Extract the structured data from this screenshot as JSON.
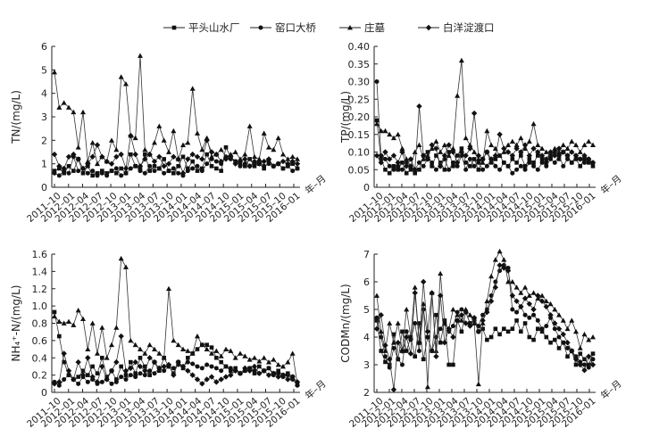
{
  "legend": [
    {
      "name": "平头山水厂",
      "marker": "square"
    },
    {
      "name": "窑口大桥",
      "marker": "circle"
    },
    {
      "name": "庄墓",
      "marker": "triangle"
    },
    {
      "name": "白洋淀渡口",
      "marker": "diamond"
    }
  ],
  "chart_data": [
    {
      "type": "line",
      "ylabel": "TN/(mg/L)",
      "xunit": "年–月",
      "ylim": [
        0,
        6
      ],
      "yticks": [
        "0",
        "1",
        "2",
        "3",
        "4",
        "5",
        "6"
      ],
      "xticks": [
        "2011–10",
        "2012–01",
        "2012–04",
        "2012–07",
        "2012–10",
        "2013–01",
        "2013–04",
        "2013–07",
        "2013–10",
        "2014–01",
        "2014–04",
        "2014–07",
        "2014–10",
        "2015–01",
        "2015–04",
        "2015–07",
        "2015–10",
        "2016–01"
      ],
      "series": [
        {
          "name": "平头山水厂",
          "values": [
            0.7,
            0.8,
            0.6,
            0.9,
            0.7,
            1.2,
            0.6,
            0.9,
            0.5,
            0.6,
            0.7,
            0.6,
            0.7,
            0.6,
            0.8,
            0.6,
            1.4,
            0.9,
            0.8,
            1.4,
            0.7,
            0.9,
            0.8,
            1.2,
            0.7,
            0.6,
            0.9,
            1.3,
            0.8,
            1.1,
            0.7,
            0.8,
            1.4,
            0.9,
            0.8,
            0.7,
            1.7,
            1.3,
            1.1,
            1.0,
            0.9,
            1.2,
            0.9,
            1.0,
            0.8,
            1.1,
            0.9,
            1.0,
            0.8,
            0.9,
            1.0,
            0.8
          ]
        },
        {
          "name": "窑口大桥",
          "values": [
            0.6,
            0.5,
            0.7,
            0.6,
            1.3,
            0.7,
            0.8,
            0.6,
            0.7,
            0.5,
            0.6,
            0.5,
            0.7,
            0.8,
            0.5,
            0.6,
            0.8,
            0.9,
            0.7,
            0.6,
            0.9,
            0.7,
            0.8,
            0.6,
            0.7,
            0.8,
            0.6,
            0.5,
            0.7,
            0.8,
            0.9,
            0.7,
            1.0,
            1.2,
            1.1,
            1.0,
            1.3,
            1.2,
            1.1,
            0.9,
            1.0,
            0.9,
            1.0,
            1.1,
            0.9,
            1.0,
            0.9,
            1.0,
            0.8,
            0.9,
            0.7,
            0.8
          ]
        },
        {
          "name": "庄墓",
          "values": [
            4.9,
            3.4,
            3.6,
            3.4,
            3.2,
            1.7,
            3.2,
            1.1,
            1.9,
            1.0,
            1.3,
            1.1,
            2.0,
            1.6,
            4.7,
            4.4,
            2.2,
            2.1,
            5.6,
            1.6,
            1.4,
            1.9,
            2.6,
            2.0,
            1.5,
            2.4,
            1.2,
            1.8,
            1.9,
            4.2,
            2.3,
            1.6,
            2.1,
            1.3,
            1.4,
            1.6,
            1.3,
            1.4,
            1.5,
            1.2,
            1.4,
            2.6,
            1.3,
            1.2,
            2.3,
            1.7,
            1.6,
            2.1,
            1.4,
            1.2,
            1.3,
            1.2
          ]
        },
        {
          "name": "白洋淀渡口",
          "values": [
            1.4,
            0.9,
            0.8,
            1.3,
            1.4,
            1.2,
            0.8,
            1.0,
            1.3,
            1.8,
            1.3,
            1.1,
            1.0,
            1.3,
            1.4,
            0.8,
            2.2,
            1.4,
            0.9,
            1.2,
            1.4,
            1.1,
            1.3,
            0.9,
            1.0,
            1.3,
            1.2,
            0.6,
            1.2,
            1.4,
            1.3,
            1.2,
            2.0,
            1.5,
            1.4,
            1.1,
            1.2,
            1.3,
            1.0,
            1.1,
            1.2,
            0.9,
            1.1,
            1.0,
            1.1,
            1.2,
            0.9,
            1.0,
            1.1,
            1.0,
            1.1,
            1.0
          ]
        }
      ]
    },
    {
      "type": "line",
      "ylabel": "TP/(mg/L)",
      "xunit": "年–月",
      "ylim": [
        0,
        0.4
      ],
      "yticks": [
        "0",
        "0.05",
        "0.10",
        "0.15",
        "0.20",
        "0.25",
        "0.30",
        "0.35",
        "0.40"
      ],
      "xticks": [
        "2011–10",
        "2012–01",
        "2012–04",
        "2012–07",
        "2012–10",
        "2013–01",
        "2013–04",
        "2013–07",
        "2013–10",
        "2014–01",
        "2014–04",
        "2014–07",
        "2014–10",
        "2015–01",
        "2015–04",
        "2015–07",
        "2015–10",
        "2016–01"
      ],
      "series": [
        {
          "name": "平头山水厂",
          "values": [
            0.19,
            0.08,
            0.05,
            0.04,
            0.06,
            0.05,
            0.07,
            0.04,
            0.05,
            0.04,
            0.05,
            0.09,
            0.1,
            0.06,
            0.09,
            0.07,
            0.05,
            0.1,
            0.06,
            0.09,
            0.11,
            0.07,
            0.06,
            0.08,
            0.05,
            0.08,
            0.1,
            0.07,
            0.08,
            0.09,
            0.07,
            0.06,
            0.08,
            0.07,
            0.09,
            0.06,
            0.08,
            0.07,
            0.09,
            0.08,
            0.07,
            0.09,
            0.1,
            0.08,
            0.1,
            0.09,
            0.07,
            0.08,
            0.06,
            0.08,
            0.07,
            0.06
          ]
        },
        {
          "name": "窑口大桥",
          "values": [
            0.3,
            0.09,
            0.08,
            0.06,
            0.05,
            0.06,
            0.05,
            0.07,
            0.06,
            0.05,
            0.07,
            0.06,
            0.08,
            0.07,
            0.05,
            0.06,
            0.08,
            0.05,
            0.07,
            0.06,
            0.09,
            0.05,
            0.08,
            0.06,
            0.07,
            0.05,
            0.06,
            0.08,
            0.06,
            0.05,
            0.07,
            0.06,
            0.04,
            0.05,
            0.06,
            0.05,
            0.07,
            0.06,
            0.05,
            0.07,
            0.06,
            0.08,
            0.07,
            0.09,
            0.06,
            0.08,
            0.07,
            0.09,
            0.08,
            0.07,
            0.08,
            0.07
          ]
        },
        {
          "name": "庄墓",
          "values": [
            0.18,
            0.16,
            0.16,
            0.15,
            0.14,
            0.15,
            0.11,
            0.08,
            0.06,
            0.1,
            0.12,
            0.08,
            0.09,
            0.11,
            0.13,
            0.1,
            0.12,
            0.09,
            0.11,
            0.26,
            0.36,
            0.14,
            0.12,
            0.1,
            0.08,
            0.07,
            0.16,
            0.12,
            0.11,
            0.09,
            0.1,
            0.12,
            0.13,
            0.12,
            0.14,
            0.11,
            0.13,
            0.18,
            0.12,
            0.11,
            0.1,
            0.09,
            0.11,
            0.1,
            0.12,
            0.11,
            0.13,
            0.12,
            0.1,
            0.12,
            0.13,
            0.12
          ]
        },
        {
          "name": "白洋淀渡口",
          "values": [
            0.09,
            0.07,
            0.1,
            0.08,
            0.09,
            0.07,
            0.1,
            0.06,
            0.08,
            0.05,
            0.23,
            0.09,
            0.08,
            0.12,
            0.11,
            0.06,
            0.09,
            0.12,
            0.1,
            0.07,
            0.1,
            0.09,
            0.11,
            0.21,
            0.09,
            0.08,
            0.1,
            0.08,
            0.09,
            0.15,
            0.11,
            0.1,
            0.09,
            0.11,
            0.1,
            0.12,
            0.09,
            0.11,
            0.1,
            0.09,
            0.08,
            0.1,
            0.09,
            0.11,
            0.1,
            0.09,
            0.1,
            0.09,
            0.08,
            0.09,
            0.08,
            0.07
          ]
        }
      ]
    },
    {
      "type": "line",
      "ylabel": "NH₄⁺-N/(mg/L)",
      "xunit": "年–月",
      "ylim": [
        0,
        1.6
      ],
      "yticks": [
        "0",
        "0.2",
        "0.4",
        "0.6",
        "0.8",
        "1.0",
        "1.2",
        "1.4",
        "1.6"
      ],
      "xticks": [
        "2011–10",
        "2012–01",
        "2012–04",
        "2012–07",
        "2012–10",
        "2013–01",
        "2013–04",
        "2013–07",
        "2013–10",
        "2014–01",
        "2014–04",
        "2014–07",
        "2014–10",
        "2015–01",
        "2015–04",
        "2015–07",
        "2015–10",
        "2016–01"
      ],
      "series": [
        {
          "name": "平头山水厂",
          "values": [
            0.93,
            0.65,
            0.35,
            0.2,
            0.15,
            0.18,
            0.25,
            0.2,
            0.3,
            0.22,
            0.4,
            0.18,
            0.25,
            0.15,
            0.3,
            0.2,
            0.35,
            0.22,
            0.4,
            0.3,
            0.2,
            0.35,
            0.25,
            0.4,
            0.3,
            0.22,
            0.35,
            0.28,
            0.4,
            0.45,
            0.5,
            0.55,
            0.55,
            0.52,
            0.4,
            0.35,
            0.3,
            0.25,
            0.28,
            0.22,
            0.25,
            0.28,
            0.22,
            0.3,
            0.25,
            0.28,
            0.22,
            0.25,
            0.2,
            0.22,
            0.18,
            0.1
          ]
        },
        {
          "name": "窑口大桥",
          "values": [
            0.12,
            0.08,
            0.15,
            0.2,
            0.15,
            0.1,
            0.18,
            0.12,
            0.15,
            0.1,
            0.12,
            0.15,
            0.1,
            0.12,
            0.18,
            0.15,
            0.2,
            0.18,
            0.22,
            0.2,
            0.25,
            0.22,
            0.28,
            0.25,
            0.3,
            0.28,
            0.32,
            0.3,
            0.35,
            0.33,
            0.3,
            0.28,
            0.32,
            0.3,
            0.28,
            0.25,
            0.3,
            0.28,
            0.25,
            0.22,
            0.25,
            0.28,
            0.25,
            0.22,
            0.25,
            0.28,
            0.2,
            0.22,
            0.18,
            0.2,
            0.15,
            0.08
          ]
        },
        {
          "name": "庄墓",
          "values": [
            0.88,
            0.82,
            0.8,
            0.82,
            0.78,
            0.95,
            0.85,
            0.5,
            0.8,
            0.45,
            0.75,
            0.4,
            0.55,
            0.75,
            1.55,
            1.45,
            0.6,
            0.55,
            0.5,
            0.45,
            0.55,
            0.5,
            0.45,
            0.4,
            1.2,
            0.6,
            0.55,
            0.5,
            0.48,
            0.45,
            0.65,
            0.55,
            0.5,
            0.45,
            0.48,
            0.42,
            0.5,
            0.48,
            0.4,
            0.45,
            0.42,
            0.38,
            0.4,
            0.36,
            0.4,
            0.35,
            0.38,
            0.32,
            0.3,
            0.35,
            0.45,
            0.1
          ]
        },
        {
          "name": "白洋淀渡口",
          "values": [
            0.1,
            0.12,
            0.45,
            0.25,
            0.15,
            0.35,
            0.2,
            0.4,
            0.18,
            0.12,
            0.3,
            0.15,
            0.25,
            0.35,
            0.65,
            0.25,
            0.28,
            0.35,
            0.3,
            0.25,
            0.4,
            0.35,
            0.28,
            0.3,
            0.32,
            0.2,
            0.35,
            0.3,
            0.25,
            0.2,
            0.15,
            0.1,
            0.15,
            0.18,
            0.12,
            0.15,
            0.18,
            0.2,
            0.25,
            0.22,
            0.28,
            0.25,
            0.3,
            0.22,
            0.25,
            0.2,
            0.22,
            0.18,
            0.2,
            0.15,
            0.18,
            0.12
          ]
        }
      ]
    },
    {
      "type": "line",
      "ylabel": "CODMn/(mg/L)",
      "xunit": "年–月",
      "ylim": [
        2,
        7
      ],
      "yticks": [
        "2",
        "3",
        "4",
        "5",
        "6",
        "7"
      ],
      "xticks": [
        "2011–10",
        "2012–01",
        "2012–04",
        "2012–07",
        "2012–10",
        "2013–01",
        "2013–04",
        "2013–07",
        "2013–10",
        "2014–01",
        "2014–04",
        "2014–07",
        "2014–10",
        "2015–01",
        "2015–04",
        "2015–07",
        "2015–10",
        "2016–01"
      ],
      "series": [
        {
          "name": "平头山水厂",
          "values": [
            4.6,
            3.5,
            3.1,
            3.0,
            4.1,
            3.2,
            4.2,
            3.5,
            4.0,
            3.3,
            4.5,
            3.2,
            4.0,
            3.5,
            4.8,
            3.8,
            4.6,
            3.0,
            3.0,
            4.6,
            4.2,
            4.9,
            4.5,
            4.6,
            4.2,
            4.3,
            3.9,
            4.0,
            4.3,
            4.1,
            4.3,
            4.2,
            4.3,
            4.6,
            4.2,
            4.5,
            4.0,
            3.9,
            4.3,
            4.2,
            4.0,
            3.8,
            3.9,
            3.6,
            3.8,
            3.3,
            3.5,
            3.0,
            3.4,
            3.2,
            3.0,
            3.4
          ]
        },
        {
          "name": "窑口大桥",
          "values": [
            4.7,
            4.0,
            3.3,
            2.9,
            3.6,
            3.2,
            3.0,
            4.2,
            3.9,
            4.5,
            3.5,
            5.0,
            4.0,
            3.5,
            4.0,
            4.3,
            4.5,
            4.2,
            4.4,
            4.9,
            5.0,
            4.9,
            4.5,
            4.6,
            4.4,
            4.8,
            5.0,
            5.5,
            6.0,
            6.4,
            6.6,
            6.5,
            5.0,
            4.9,
            5.1,
            4.8,
            4.7,
            4.8,
            4.6,
            4.3,
            4.4,
            4.7,
            4.3,
            4.0,
            3.8,
            3.6,
            3.5,
            3.3,
            3.1,
            3.0,
            2.9,
            3.2
          ]
        },
        {
          "name": "庄墓",
          "values": [
            5.5,
            4.2,
            3.5,
            4.5,
            3.8,
            4.5,
            3.5,
            5.0,
            4.0,
            5.8,
            3.8,
            5.2,
            2.2,
            5.6,
            3.5,
            6.3,
            4.5,
            4.3,
            5.0,
            4.8,
            4.6,
            5.0,
            4.8,
            4.5,
            2.3,
            4.5,
            5.3,
            6.2,
            6.8,
            7.1,
            6.8,
            6.0,
            6.0,
            5.8,
            5.6,
            5.8,
            5.5,
            5.6,
            5.4,
            5.5,
            5.3,
            5.2,
            5.0,
            4.8,
            4.6,
            4.3,
            4.6,
            4.2,
            3.6,
            4.1,
            3.9,
            4.0
          ]
        },
        {
          "name": "白洋淀渡口",
          "values": [
            4.3,
            4.8,
            3.7,
            3.2,
            2.1,
            3.8,
            3.5,
            4.0,
            3.4,
            5.6,
            3.8,
            6.0,
            4.2,
            5.6,
            3.3,
            5.5,
            3.8,
            4.3,
            4.0,
            4.6,
            4.8,
            4.5,
            4.4,
            4.7,
            4.2,
            4.6,
            4.9,
            5.3,
            5.8,
            6.6,
            6.5,
            6.4,
            5.5,
            5.3,
            5.1,
            5.4,
            5.2,
            5.0,
            5.5,
            5.3,
            5.1,
            4.8,
            4.5,
            4.3,
            4.1,
            3.8,
            3.5,
            3.2,
            3.0,
            2.8,
            3.3,
            3.0
          ]
        }
      ]
    }
  ]
}
